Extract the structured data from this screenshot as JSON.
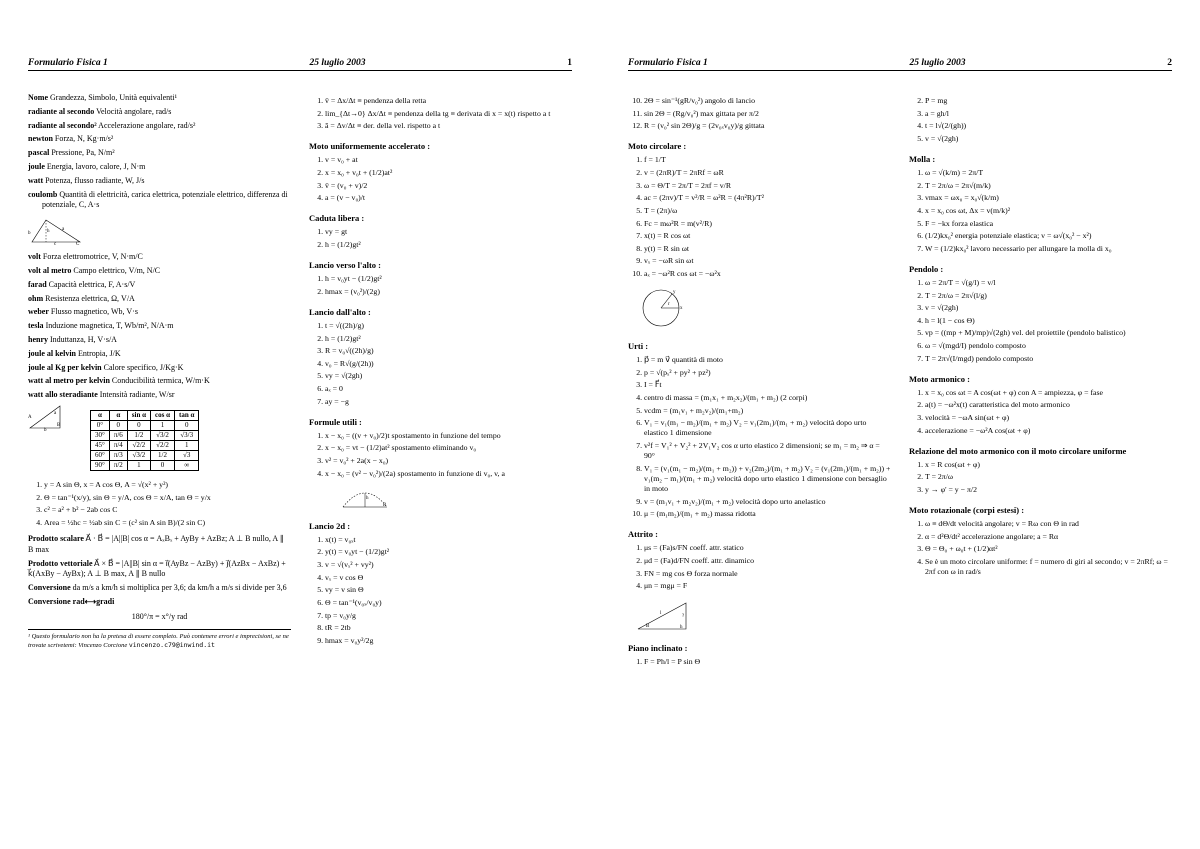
{
  "header": {
    "title": "Formulario Fisica 1",
    "date": "25 luglio 2003",
    "page1": "1",
    "page2": "2"
  },
  "p1": {
    "c1": {
      "items": [
        {
          "b": "Nome",
          "t": " Grandezza, Simbolo, Unità equivalenti¹"
        },
        {
          "b": "radiante al secondo",
          "t": " Velocità angolare, rad/s"
        },
        {
          "b": "radiante al secondo²",
          "t": " Accelerazione angolare, rad/s²"
        },
        {
          "b": "newton",
          "t": " Forza, N, Kg·m/s²"
        },
        {
          "b": "pascal",
          "t": " Pressione, Pa, N/m²"
        },
        {
          "b": "joule",
          "t": " Energia, lavoro, calore, J, N·m"
        },
        {
          "b": "watt",
          "t": " Potenza, flusso radiante, W, J/s"
        },
        {
          "b": "coulomb",
          "t": " Quantità di elettricità, carica elettrica, potenziale elettrico, differenza di potenziale, C, A·s"
        },
        {
          "b": "volt",
          "t": " Forza elettromotrice, V, N·m/C"
        },
        {
          "b": "volt al metro",
          "t": " Campo elettrico, V/m, N/C"
        },
        {
          "b": "farad",
          "t": " Capacità elettrica, F, A·s/V"
        },
        {
          "b": "ohm",
          "t": " Resistenza elettrica, Ω, V/A"
        },
        {
          "b": "weber",
          "t": " Flusso magnetico, Wb, V·s"
        },
        {
          "b": "tesla",
          "t": " Induzione magnetica, T, Wb/m², N/A·m"
        },
        {
          "b": "henry",
          "t": " Induttanza, H, V·s/A"
        },
        {
          "b": "joule al kelvin",
          "t": " Entropia, J/K"
        },
        {
          "b": "joule al Kg per kelvin",
          "t": " Calore specifico, J/Kg·K"
        },
        {
          "b": "watt al metro per kelvin",
          "t": " Conducibilità termica, W/m·K"
        },
        {
          "b": "watt allo steradiante",
          "t": " Intensità radiante, W/sr"
        }
      ],
      "trig_table": {
        "head": [
          "α",
          "α",
          "sin α",
          "cos α",
          "tan α"
        ],
        "rows": [
          [
            "0°",
            "0",
            "0",
            "1",
            "0"
          ],
          [
            "30°",
            "π/6",
            "1/2",
            "√3/2",
            "√3/3"
          ],
          [
            "45°",
            "π/4",
            "√2/2",
            "√2/2",
            "1"
          ],
          [
            "60°",
            "π/3",
            "√3/2",
            "1/2",
            "√3"
          ],
          [
            "90°",
            "π/2",
            "1",
            "0",
            "∞"
          ]
        ]
      },
      "trig_formulas": [
        "y = A sin Θ, x = A cos Θ, A = √(x² + y²)",
        "Θ = tan⁻¹(x/y), sin Θ = y/A, cos Θ = x/A, tan Θ = y/x",
        "c² = a² + b² − 2ab cos C",
        "Area = ½hc = ½ab sin C = (c² sin A sin B)/(2 sin C)"
      ],
      "scalar_b": "Prodotto scalare",
      "scalar_t": " A⃗ · B⃗ = |A||B| cos α = AₓBₓ + AyBy + AzBz; A ⊥ B nullo, A ∥ B max",
      "vector_b": "Prodotto vettoriale",
      "vector_t": " A⃗ × B⃗ = |A||B| sin α = i⃗(AyBz − AzBy) + j⃗(AzBx − AxBz) + k⃗(AxBy − AyBx); A ⊥ B max, A ∥ B nullo",
      "conv_b": "Conversione",
      "conv_t": " da m/s a km/h si moltiplica per 3,6; da km/h a m/s si divide per 3,6",
      "convr_b": "Conversione rad⟷gradi",
      "convr_eq": "180°/π = x°/y rad",
      "footnote": "¹ Questo formulario non ha la pretesa di essere completo. Può contenere errori e imprecisioni, se ne trovate scrivetemi: Vincenzo Corcione ",
      "footnote_email": "vincenzo.c79@inwind.it"
    },
    "c2": {
      "top": [
        "v̄ = Δx/Δt ≡ pendenza della retta",
        "lim_{Δt→0} Δx/Δt ≡ pendenza della tg ≡ derivata di x = x(t) rispetto a t",
        "ā = Δv/Δt ≡ der. della vel. rispetto a t"
      ],
      "sec1": "Moto uniformemente accelerato :",
      "l1": [
        "v = v₀ + at",
        "x = x₀ + v₀t + (1/2)at²",
        "v̄ = (v₀ + v)/2",
        "a = (v − v₀)/t"
      ],
      "sec2": "Caduta libera :",
      "l2": [
        "vy = gt",
        "h = (1/2)gt²"
      ],
      "sec3": "Lancio verso l'alto :",
      "l3": [
        "h = v₀yt − (1/2)gt²",
        "hmax = (v₀²)/(2g)"
      ],
      "sec4": "Lancio dall'alto :",
      "l4": [
        "t = √((2h)/g)",
        "h = (1/2)gt²",
        "R = v₀√((2h)/g)",
        "v₀ = R√(g/(2h))",
        "vy = √(2gh)",
        "aₓ = 0",
        "ay = −g"
      ],
      "sec5": "Formule utili :",
      "l5": [
        "x − x₀ = ((v + v₀)/2)t spostamento in funzione del tempo",
        "x − x₀ = vt − (1/2)at² spostamento eliminando v₀",
        "v² = v₀² + 2a(x − x₀)",
        "x − x₀ = (v² − v₀²)/(2a) spostamento in funzione di v₀, v, a"
      ],
      "sec6": "Lancio 2d :",
      "l6": [
        "x(t) = v₀ₓt",
        "y(t) = v₀yt − (1/2)gt²",
        "v = √(vₓ² + vy²)",
        "vₓ = v cos Θ",
        "vy = v sin Θ",
        "Θ = tan⁻¹(v₀ₓ/v₀y)",
        "tp = v₀y/g",
        "tR = 2tb",
        "hmax = v₀y²/2g"
      ]
    }
  },
  "p2": {
    "c1": {
      "start": 10,
      "top": [
        "2Θ = sin⁻¹(gR/v₀²) angolo di lancio",
        "sin 2Θ = (Rg/v₀²) max gittata per π/2",
        "R = (v₀² sin 2Θ)/g = (2v₀ₓv₀y)/g gittata"
      ],
      "sec1": "Moto circolare :",
      "l1": [
        "f = 1/T",
        "v = (2πR)/T = 2πRf = ωR",
        "ω = Θ/T = 2π/T = 2πf = v/R",
        "ac = (2πv)/T = v²/R = ω²R = (4π²R)/T²",
        "T = (2π)/ω",
        "Fc = mω²R = m(v²/R)",
        "x(t) = R cos ωt",
        "y(t) = R sin ωt",
        "vₓ = −ωR sin ωt",
        "aₓ = −ω²R cos ωt = −ω²x"
      ],
      "sec2": "Urti :",
      "l2": [
        "p⃗ = m v⃗ quantità di moto",
        "p = √(pₓ² + py² + pz²)",
        "I = F⃗t",
        "centro di massa = (m₁x₁ + m₂x₂)/(m₁ + m₂) (2 corpi)",
        "vcdm = (m₁v₁ + m₂v₂)/(m₁+m₂)",
        "V₁ = v₁(m₁ − m₂)/(m₁ + m₂)   V₂ = v₁(2m₁)/(m₁ + m₂) velocità dopo urto elastico 1 dimensione",
        "v²f = V₁² + V₂² + 2V₁V₂ cos α urto elastico 2 dimensioni; se m₁ = m₂ ⇒ α = 90°",
        "V₁ = (v₁(m₁ − m₂)/(m₁ + m₂)) + v₂(2m₂)/(m₁ + m₂)   V₂ = (v₁(2m₁)/(m₁ + m₂)) + v₁(m₂ − m₁)/(m₁ + m₂) velocità dopo urto elastico 1 dimensione con bersaglio in moto",
        "v = (m₁v₁ + m₂v₂)/(m₁ + m₂) velocità dopo urto anelastico",
        "μ = (m₁m₂)/(m₁ + m₂) massa ridotta"
      ],
      "sec3": "Attrito :",
      "l3": [
        "μs = (Fa)s/FN coeff. attr. statico",
        "μd = (Fa)d/FN coeff. attr. dinamico",
        "FN = mg cos Θ forza normale",
        "μn = mgμ = F"
      ],
      "sec4": "Piano inclinato :",
      "l4": [
        "F = Ph/l = P sin Θ"
      ]
    },
    "c2": {
      "start": 2,
      "top": [
        "P = mg",
        "a = gh/l",
        "t = l√(2/(gh))",
        "v = √(2gh)"
      ],
      "sec1": "Molla :",
      "l1": [
        "ω = √(k/m) = 2π/T",
        "T = 2π/ω = 2π√(m/k)",
        "vmax = ωx₀ = x₀√(k/m)",
        "x = x₀ cos ωt, Δx = v(m/k)²",
        "F = −kx forza elastica",
        "(1/2)kx₀² energia potenziale elastica; v = ω√(x₀² − x²)",
        "W = (1/2)kx₀² lavoro necessario per allungare la molla di x₀"
      ],
      "sec2": "Pendolo :",
      "l2": [
        "ω = 2π/T = √(g/l) = v/l",
        "T = 2π/ω = 2π√(l/g)",
        "v = √(2gh)",
        "h = l(1 − cos Θ)",
        "vp = ((mp + M)/mp)√(2gh) vel. del proiettile (pendolo balistico)",
        "ω = √(mgd/I) pendolo composto",
        "T = 2π√(I/mgd) pendolo composto"
      ],
      "sec3": "Moto armonico :",
      "l3": [
        "x = x₀ cos ωt = A cos(ωt + φ) con A = ampiezza, φ = fase",
        "a(t) = −ω²x(t) caratteristica del moto armonico",
        "velocità = −ωA sin(ωt + φ)",
        "accelerazione = −ω²A cos(ωt + φ)"
      ],
      "sec4": "Relazione del moto armonico con il moto circolare uniforme",
      "l4": [
        "x = R cos(ωt + φ)",
        "T = 2π/ω",
        "y → φ' = y − π/2"
      ],
      "sec5": "Moto rotazionale (corpi estesi) :",
      "l5": [
        "ω ≡ dΘ/dt velocità angolare; v = Rω con Θ in rad",
        "α = d²Θ/dt² accelerazione angolare; a = Rα",
        "Θ = Θ₀ + ω₀t + (1/2)αt²",
        "Se è un moto circolare uniforme: f = numero di giri al secondo; v = 2πRf; ω = 2πf con ω in rad/s"
      ]
    }
  }
}
